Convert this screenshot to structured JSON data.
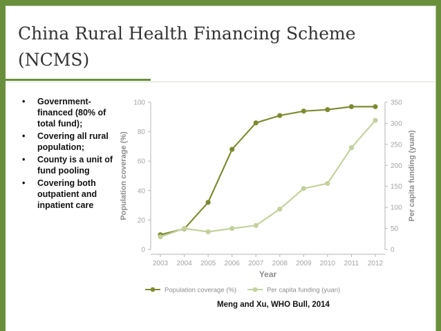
{
  "slide": {
    "title": "China Rural Health Financing Scheme (NCMS)",
    "bullets": [
      "Government-financed (80% of total fund);",
      "Covering all rural population;",
      "County is a unit of fund pooling",
      "Covering  both outpatient and inpatient care"
    ],
    "bullet_glyph": "•",
    "credit": "Meng and Xu, WHO Bull, 2014"
  },
  "colors": {
    "frame": "#6a8f3c",
    "series_coverage": "#7f8a30",
    "series_funding": "#c3d19c",
    "axis_text": "#a3a3a3",
    "axis_title": "#8c8c8c"
  },
  "chart_data": {
    "type": "line",
    "title": "",
    "xlabel": "Year",
    "ylabel": "Population coverage (%)",
    "y2label": "Per capita funding (yuan)",
    "x": [
      "2003",
      "2004",
      "2005",
      "2006",
      "2007",
      "2008",
      "2009",
      "2010",
      "2011",
      "2012"
    ],
    "ylim": [
      0,
      100
    ],
    "yticks": [
      0,
      20,
      40,
      60,
      80,
      100
    ],
    "y2lim": [
      0,
      350
    ],
    "y2ticks": [
      0,
      50,
      100,
      150,
      200,
      250,
      300,
      350
    ],
    "grid": false,
    "legend_position": "bottom",
    "series": [
      {
        "name": "Population coverage (%)",
        "axis": "left",
        "values": [
          10,
          14,
          32,
          68,
          86,
          91,
          94,
          95,
          97,
          97
        ]
      },
      {
        "name": "Per capita funding (yuan)",
        "axis": "right",
        "values": [
          30,
          50,
          42,
          50,
          57,
          96,
          145,
          157,
          242,
          307
        ]
      }
    ]
  }
}
